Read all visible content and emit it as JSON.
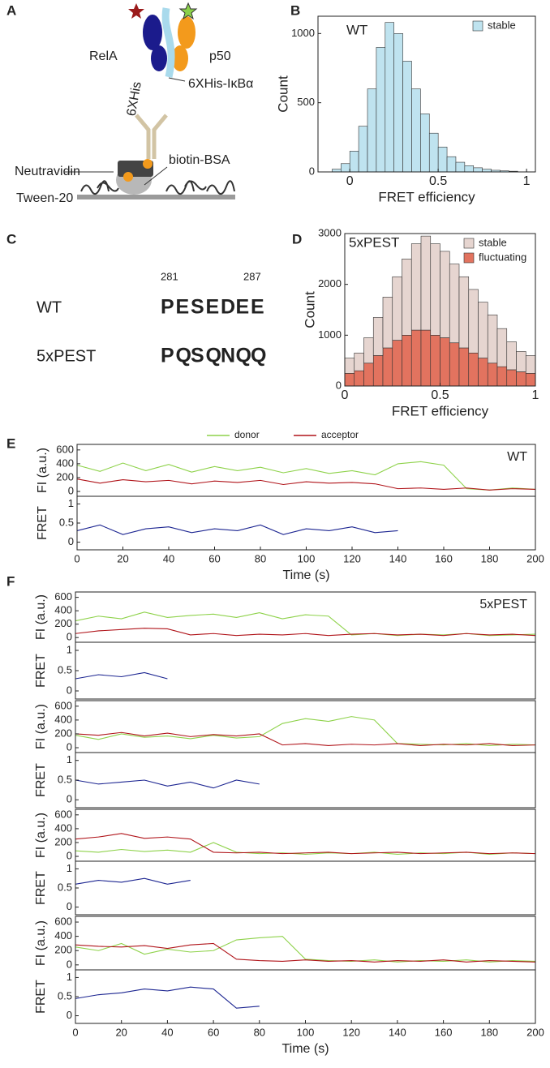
{
  "panel_labels": [
    "A",
    "B",
    "C",
    "D",
    "E",
    "F"
  ],
  "diagram": {
    "rela": "RelA",
    "p50": "p50",
    "his": "6XHis",
    "his_ikba": "6XHis-IκBα",
    "neutravidin": "Neutravidin",
    "biotin_bsa": "biotin-BSA",
    "tween": "Tween-20"
  },
  "sequence_panel": {
    "start": "281",
    "end": "287",
    "sequences": [
      {
        "name": "WT",
        "residues": [
          {
            "text": "P",
            "color": "#111111"
          },
          {
            "text": "E",
            "color": "#8ccbdc"
          },
          {
            "text": "S",
            "color": "#111111"
          },
          {
            "text": "E",
            "color": "#8ccbdc"
          },
          {
            "text": "D",
            "color": "#8ccbdc"
          },
          {
            "text": "E",
            "color": "#8ccbdc"
          },
          {
            "text": "E",
            "color": "#8ccbdc"
          }
        ]
      },
      {
        "name": "5xPEST",
        "residues": [
          {
            "text": "P",
            "color": "#111111"
          },
          {
            "text": "Q",
            "color": "#e0573f"
          },
          {
            "text": "S",
            "color": "#111111"
          },
          {
            "text": "Q",
            "color": "#e0573f"
          },
          {
            "text": "N",
            "color": "#e0573f"
          },
          {
            "text": "Q",
            "color": "#e0573f"
          },
          {
            "text": "Q",
            "color": "#e0573f"
          }
        ]
      }
    ]
  },
  "chart_data": [
    {
      "type": "histogram",
      "annotation": "WT",
      "x_label": "FRET efficiency",
      "y_label": "Count",
      "bins": [
        -0.1,
        -0.05,
        0,
        0.05,
        0.1,
        0.15,
        0.2,
        0.25,
        0.3,
        0.35,
        0.4,
        0.45,
        0.5,
        0.55,
        0.6,
        0.65,
        0.7,
        0.75,
        0.8,
        0.85,
        0.9,
        0.95
      ],
      "series": [
        {
          "name": "stable",
          "color": "#bfe3ef",
          "values": [
            20,
            60,
            150,
            330,
            600,
            900,
            1080,
            1000,
            800,
            600,
            420,
            280,
            180,
            110,
            70,
            45,
            30,
            20,
            12,
            8,
            5
          ]
        }
      ],
      "xlim": [
        -0.18,
        1.05
      ],
      "xticks": [
        0,
        0.5,
        1
      ],
      "ylim": [
        0,
        1125
      ],
      "yticks": [
        0,
        500,
        1000
      ]
    },
    {
      "type": "histogram",
      "stacked": true,
      "annotation": "5xPEST",
      "x_label": "FRET efficiency",
      "y_label": "Count",
      "bins": [
        0,
        0.05,
        0.1,
        0.15,
        0.2,
        0.25,
        0.3,
        0.35,
        0.4,
        0.45,
        0.5,
        0.55,
        0.6,
        0.65,
        0.7,
        0.75,
        0.8,
        0.85,
        0.9,
        0.95,
        1
      ],
      "series": [
        {
          "name": "stable",
          "color": "#e6d5d0",
          "values": [
            300,
            350,
            500,
            750,
            1000,
            1250,
            1500,
            1700,
            1850,
            1800,
            1700,
            1550,
            1400,
            1250,
            1100,
            950,
            750,
            550,
            400,
            350
          ]
        },
        {
          "name": "fluctuating",
          "color": "#e2735f",
          "values": [
            250,
            300,
            450,
            600,
            750,
            900,
            1000,
            1100,
            1100,
            1000,
            950,
            850,
            750,
            650,
            550,
            450,
            380,
            320,
            280,
            250
          ]
        }
      ],
      "xlim": [
        0,
        1
      ],
      "xticks": [
        0,
        0.5,
        1
      ],
      "ylim": [
        0,
        3000
      ],
      "yticks": [
        0,
        1000,
        2000,
        3000
      ]
    },
    {
      "type": "trace",
      "annotation": "WT",
      "y_label": "FI (a.u.)",
      "y2_label": "FRET",
      "x_label": "Time (s)",
      "x": [
        0,
        10,
        20,
        30,
        40,
        50,
        60,
        70,
        80,
        90,
        100,
        110,
        120,
        130,
        140,
        150,
        160,
        170,
        180,
        190,
        200
      ],
      "series": [
        {
          "name": "donor",
          "color": "#8ed24a",
          "values": [
            380,
            290,
            410,
            300,
            390,
            280,
            360,
            300,
            350,
            270,
            330,
            260,
            300,
            240,
            400,
            430,
            380,
            40,
            20,
            50,
            30
          ]
        },
        {
          "name": "acceptor",
          "color": "#b0141a",
          "values": [
            180,
            120,
            170,
            140,
            160,
            110,
            150,
            130,
            160,
            100,
            140,
            120,
            130,
            110,
            40,
            50,
            30,
            50,
            20,
            40,
            30
          ]
        },
        {
          "color": "#1c2591",
          "axis": "y2",
          "values": [
            0.3,
            0.45,
            0.2,
            0.35,
            0.4,
            0.25,
            0.35,
            0.3,
            0.45,
            0.2,
            0.35,
            0.3,
            0.4,
            0.25,
            0.3,
            null,
            null,
            null,
            null,
            null,
            null
          ]
        }
      ],
      "xlim": [
        0,
        200
      ],
      "xticks": [
        0,
        20,
        40,
        60,
        80,
        100,
        120,
        140,
        160,
        180,
        200
      ],
      "ylim": [
        -70,
        680
      ],
      "yticks": [
        0,
        200,
        400,
        600
      ],
      "y2lim": [
        -0.2,
        1.2
      ],
      "y2ticks": [
        0,
        0.5,
        1
      ]
    },
    {
      "type": "trace",
      "annotation": "5xPEST",
      "y_label": "FI (a.u.)",
      "y2_label": "FRET",
      "x": [
        0,
        10,
        20,
        30,
        40,
        50,
        60,
        70,
        80,
        90,
        100,
        110,
        120,
        130,
        140,
        150,
        160,
        170,
        180,
        190,
        200
      ],
      "series": [
        {
          "color": "#8ed24a",
          "values": [
            250,
            320,
            280,
            380,
            300,
            330,
            350,
            300,
            370,
            280,
            340,
            320,
            40,
            60,
            30,
            50,
            40,
            60,
            30,
            40,
            50
          ]
        },
        {
          "color": "#b0141a",
          "values": [
            60,
            100,
            120,
            140,
            130,
            40,
            60,
            30,
            50,
            40,
            60,
            30,
            50,
            60,
            40,
            50,
            30,
            60,
            40,
            50,
            30
          ]
        },
        {
          "color": "#1c2591",
          "axis": "y2",
          "values": [
            0.3,
            0.4,
            0.35,
            0.45,
            0.3,
            null,
            null,
            null,
            null,
            null,
            null,
            null,
            null,
            null,
            null,
            null,
            null,
            null,
            null,
            null,
            null
          ]
        }
      ],
      "xlim": [
        0,
        200
      ],
      "ylim": [
        -70,
        680
      ],
      "yticks": [
        0,
        200,
        400,
        600
      ],
      "y2lim": [
        -0.2,
        1.2
      ],
      "y2ticks": [
        0,
        0.5,
        1
      ]
    },
    {
      "type": "trace",
      "y_label": "FI (a.u.)",
      "y2_label": "FRET",
      "x": [
        0,
        10,
        20,
        30,
        40,
        50,
        60,
        70,
        80,
        90,
        100,
        110,
        120,
        130,
        140,
        150,
        160,
        170,
        180,
        190,
        200
      ],
      "series": [
        {
          "color": "#8ed24a",
          "values": [
            180,
            120,
            200,
            150,
            170,
            130,
            180,
            140,
            160,
            350,
            420,
            380,
            450,
            400,
            60,
            50,
            40,
            60,
            30,
            50,
            40
          ]
        },
        {
          "color": "#b0141a",
          "values": [
            200,
            180,
            220,
            170,
            210,
            160,
            190,
            170,
            200,
            40,
            60,
            30,
            50,
            40,
            60,
            30,
            50,
            40,
            60,
            30,
            40
          ]
        },
        {
          "color": "#1c2591",
          "axis": "y2",
          "values": [
            0.5,
            0.4,
            0.45,
            0.5,
            0.35,
            0.45,
            0.3,
            0.5,
            0.4,
            null,
            null,
            null,
            null,
            null,
            null,
            null,
            null,
            null,
            null,
            null,
            null
          ]
        }
      ],
      "xlim": [
        0,
        200
      ],
      "ylim": [
        -70,
        680
      ],
      "yticks": [
        0,
        200,
        400,
        600
      ],
      "y2lim": [
        -0.2,
        1.2
      ],
      "y2ticks": [
        0,
        0.5,
        1
      ]
    },
    {
      "type": "trace",
      "y_label": "FI (a.u.)",
      "y2_label": "FRET",
      "x": [
        0,
        10,
        20,
        30,
        40,
        50,
        60,
        70,
        80,
        90,
        100,
        110,
        120,
        130,
        140,
        150,
        160,
        170,
        180,
        190,
        200
      ],
      "series": [
        {
          "color": "#8ed24a",
          "values": [
            80,
            60,
            100,
            70,
            90,
            60,
            200,
            60,
            40,
            50,
            30,
            50,
            40,
            60,
            30,
            50,
            40,
            60,
            30,
            50,
            40
          ]
        },
        {
          "color": "#b0141a",
          "values": [
            250,
            280,
            330,
            260,
            280,
            250,
            60,
            50,
            60,
            40,
            50,
            60,
            40,
            50,
            60,
            40,
            50,
            60,
            40,
            50,
            40
          ]
        },
        {
          "color": "#1c2591",
          "axis": "y2",
          "values": [
            0.6,
            0.7,
            0.65,
            0.75,
            0.6,
            0.7,
            null,
            null,
            null,
            null,
            null,
            null,
            null,
            null,
            null,
            null,
            null,
            null,
            null,
            null,
            null
          ]
        }
      ],
      "xlim": [
        0,
        200
      ],
      "ylim": [
        -70,
        680
      ],
      "yticks": [
        0,
        200,
        400,
        600
      ],
      "y2lim": [
        -0.2,
        1.2
      ],
      "y2ticks": [
        0,
        0.5,
        1
      ]
    },
    {
      "type": "trace",
      "y_label": "FI (a.u.)",
      "y2_label": "FRET",
      "x_label": "Time (s)",
      "x": [
        0,
        10,
        20,
        30,
        40,
        50,
        60,
        70,
        80,
        90,
        100,
        110,
        120,
        130,
        140,
        150,
        160,
        170,
        180,
        190,
        200
      ],
      "series": [
        {
          "color": "#8ed24a",
          "values": [
            250,
            200,
            300,
            150,
            220,
            180,
            200,
            350,
            380,
            400,
            80,
            60,
            50,
            70,
            40,
            60,
            50,
            70,
            40,
            60,
            50
          ]
        },
        {
          "color": "#b0141a",
          "values": [
            280,
            260,
            250,
            270,
            230,
            280,
            300,
            80,
            60,
            50,
            70,
            50,
            60,
            40,
            60,
            50,
            70,
            40,
            60,
            50,
            40
          ]
        },
        {
          "color": "#1c2591",
          "axis": "y2",
          "values": [
            0.45,
            0.55,
            0.6,
            0.7,
            0.65,
            0.75,
            0.7,
            0.2,
            0.25,
            null,
            null,
            null,
            null,
            null,
            null,
            null,
            null,
            null,
            null,
            null,
            null
          ]
        }
      ],
      "xlim": [
        0,
        200
      ],
      "xticks": [
        0,
        20,
        40,
        60,
        80,
        100,
        120,
        140,
        160,
        180,
        200
      ],
      "ylim": [
        -70,
        680
      ],
      "yticks": [
        0,
        200,
        400,
        600
      ],
      "y2lim": [
        -0.2,
        1.2
      ],
      "y2ticks": [
        0,
        0.5,
        1
      ]
    }
  ]
}
